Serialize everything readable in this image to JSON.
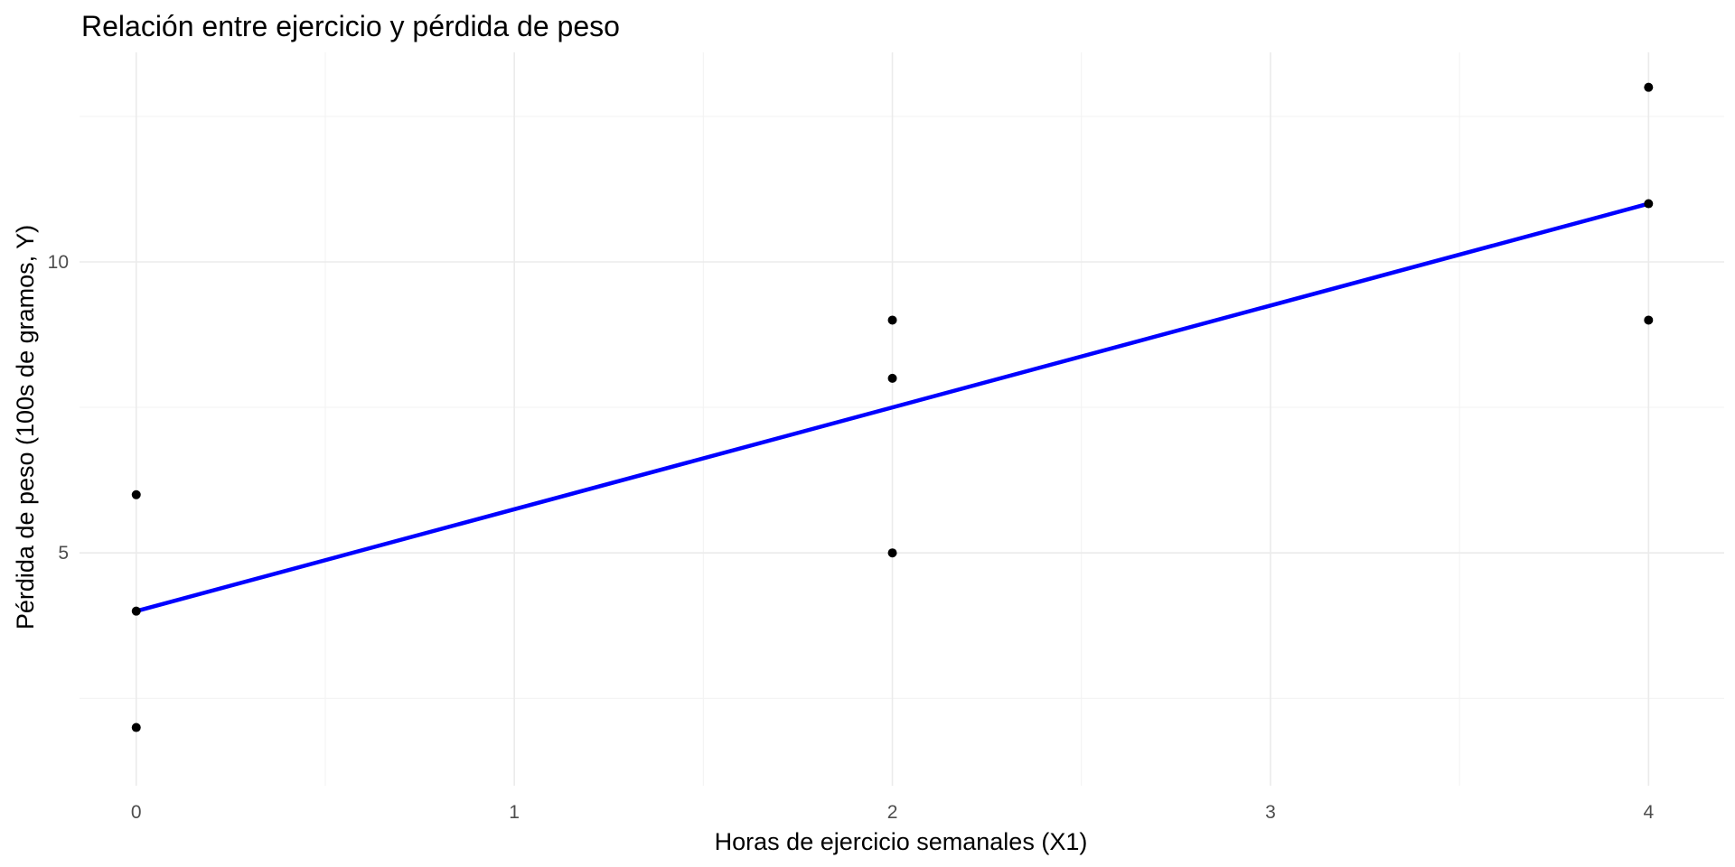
{
  "chart_data": {
    "type": "scatter",
    "title": "Relación entre ejercicio y pérdida de peso",
    "xlabel": "Horas de ejercicio semanales (X1)",
    "ylabel": "Pérdida de peso (100s de gramos, Y)",
    "xlim": [
      -0.15,
      4.2
    ],
    "ylim": [
      1.0,
      13.6
    ],
    "x_ticks": [
      0,
      1,
      2,
      3,
      4
    ],
    "y_ticks": [
      5,
      10
    ],
    "grid": true,
    "legend": "none",
    "points": [
      {
        "x": 0,
        "y": 2
      },
      {
        "x": 0,
        "y": 4
      },
      {
        "x": 0,
        "y": 6
      },
      {
        "x": 2,
        "y": 5
      },
      {
        "x": 2,
        "y": 8
      },
      {
        "x": 2,
        "y": 9
      },
      {
        "x": 4,
        "y": 9
      },
      {
        "x": 4,
        "y": 11
      },
      {
        "x": 4,
        "y": 13
      }
    ],
    "trend_line": {
      "x": [
        0,
        4
      ],
      "y": [
        4,
        11
      ]
    },
    "colors": {
      "points": "#000000",
      "trend_line": "#0000ff"
    }
  }
}
